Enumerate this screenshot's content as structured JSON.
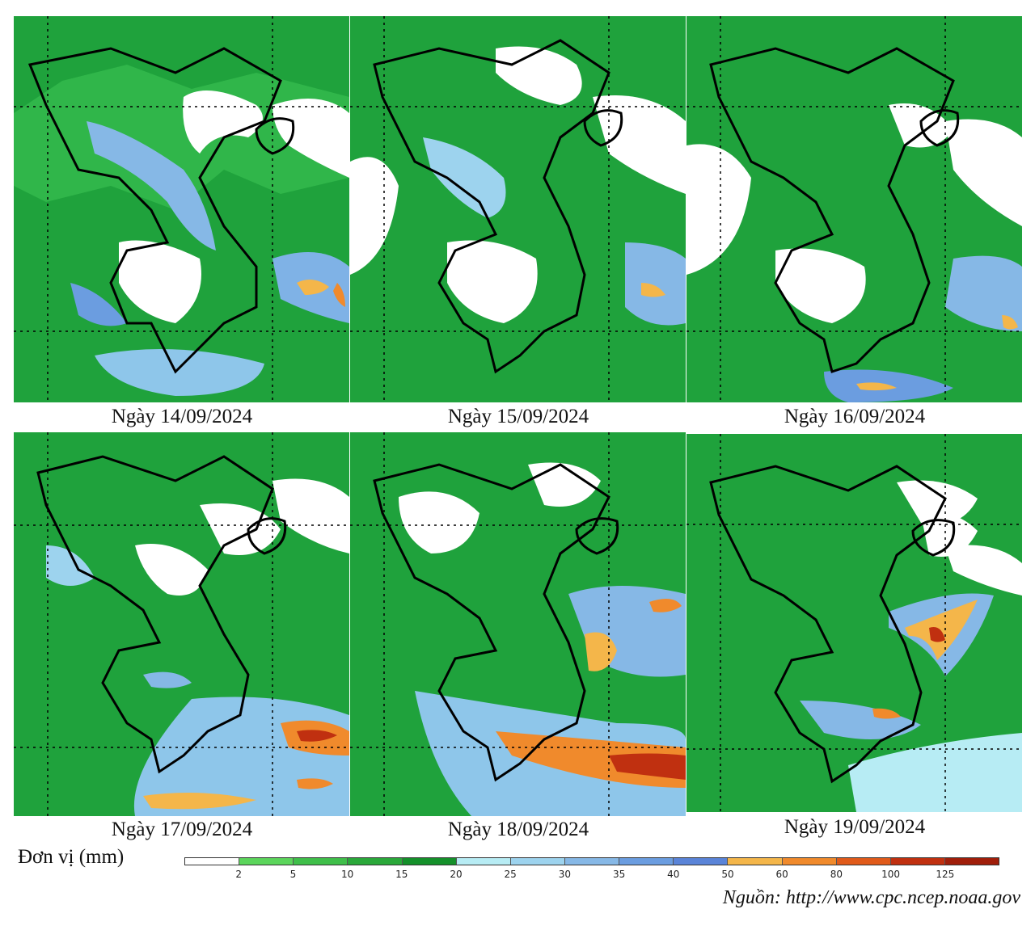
{
  "panels": [
    {
      "id": "p1",
      "caption": "Ngày 14/09/2024",
      "blue_zones": 2,
      "orange_zones": 1
    },
    {
      "id": "p2",
      "caption": "Ngày 15/09/2024",
      "blue_zones": 2,
      "orange_zones": 1
    },
    {
      "id": "p3",
      "caption": "Ngày 16/09/2024",
      "blue_zones": 2,
      "orange_zones": 1
    },
    {
      "id": "p4",
      "caption": "Ngày 17/09/2024",
      "blue_zones": 3,
      "orange_zones": 3
    },
    {
      "id": "p5",
      "caption": "Ngày 18/09/2024",
      "blue_zones": 3,
      "orange_zones": 3
    },
    {
      "id": "p6",
      "caption": "Ngày 19/09/2024",
      "blue_zones": 3,
      "orange_zones": 2
    }
  ],
  "legend": {
    "unit_label": "Đơn vị (mm)",
    "ticks": [
      "2",
      "5",
      "10",
      "15",
      "20",
      "25",
      "30",
      "35",
      "40",
      "50",
      "60",
      "80",
      "100",
      "125"
    ],
    "colors": [
      "#ffffff",
      "#5bd55b",
      "#3fbf4a",
      "#2aa83a",
      "#14902a",
      "#b7ecf4",
      "#9dd3ee",
      "#86b8e6",
      "#6b9de0",
      "#5a84d8",
      "#f4b64a",
      "#f08a2c",
      "#e05a1a",
      "#c03010",
      "#a01e0a"
    ]
  },
  "source": "Nguồn: http://www.cpc.ncep.noaa.gov"
}
